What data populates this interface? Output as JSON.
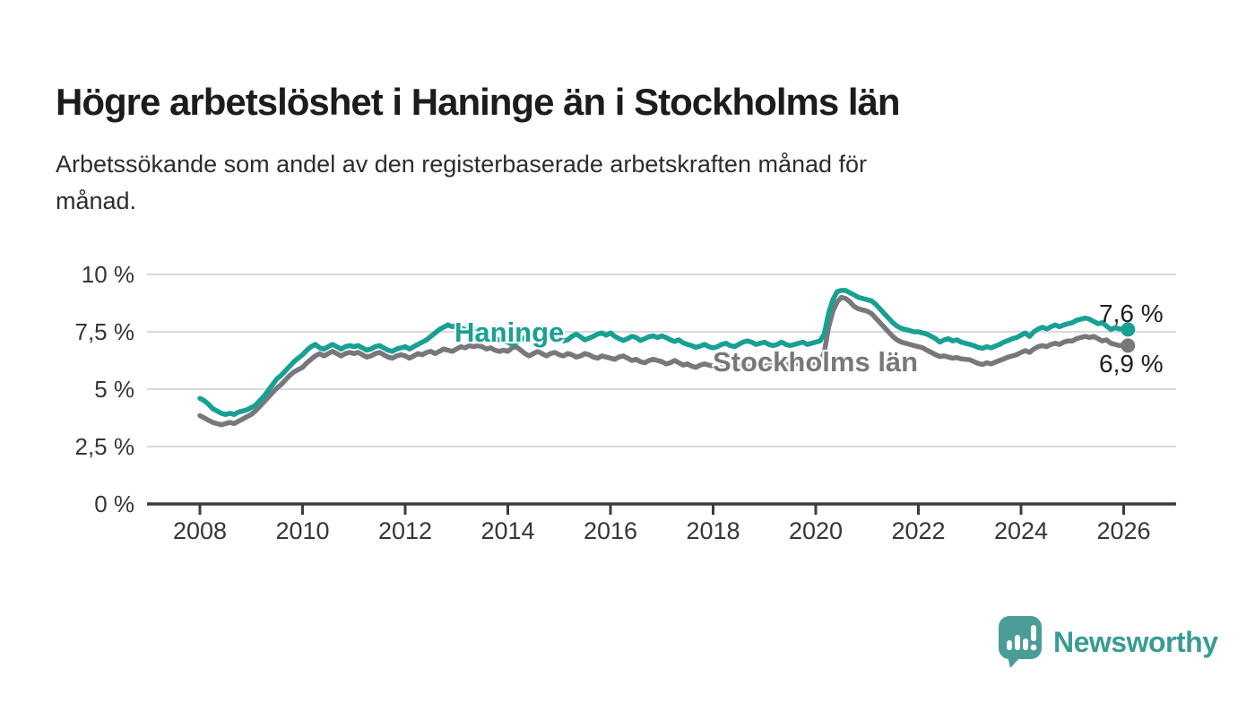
{
  "header": {
    "title": "Högre arbetslöshet i Haninge än i Stockholms län",
    "subtitle_line1": "Arbetssökande som andel av den registerbaserade arbetskraften månad för",
    "subtitle_line2": "månad."
  },
  "chart_data": {
    "type": "line",
    "unit": "percent of registered labour force",
    "x_start": "2008-01",
    "x_end": "2026-02",
    "x_interval": "monthly",
    "x_tick_labels": [
      "2008",
      "2010",
      "2012",
      "2014",
      "2016",
      "2018",
      "2020",
      "2022",
      "2024",
      "2026"
    ],
    "y_tick_values": [
      0,
      2.5,
      5,
      7.5,
      10
    ],
    "y_tick_labels": [
      "0 %",
      "2,5 %",
      "5 %",
      "7,5 %",
      "10 %"
    ],
    "ylim": [
      0,
      10
    ],
    "grid": "horizontal",
    "axis_color": "#3C3C3C",
    "grid_color": "#D9D9D9",
    "series": [
      {
        "name": "Haninge",
        "color": "#18A093",
        "end_label": "7,6 %",
        "end_value": 7.6,
        "values": [
          4.6,
          4.5,
          4.35,
          4.15,
          4.05,
          3.95,
          3.9,
          3.95,
          3.9,
          4.0,
          4.05,
          4.1,
          4.2,
          4.3,
          4.5,
          4.7,
          4.95,
          5.2,
          5.45,
          5.6,
          5.8,
          6.0,
          6.2,
          6.35,
          6.5,
          6.7,
          6.85,
          6.95,
          6.8,
          6.75,
          6.85,
          6.95,
          6.85,
          6.75,
          6.85,
          6.9,
          6.85,
          6.9,
          6.8,
          6.7,
          6.75,
          6.85,
          6.9,
          6.8,
          6.7,
          6.65,
          6.75,
          6.8,
          6.85,
          6.75,
          6.85,
          6.95,
          7.05,
          7.15,
          7.3,
          7.45,
          7.6,
          7.7,
          7.8,
          7.72,
          7.78,
          7.68,
          7.6,
          7.55,
          7.62,
          7.5,
          7.42,
          7.35,
          7.28,
          7.2,
          7.15,
          7.1,
          7.05,
          6.95,
          7.05,
          7.15,
          7.25,
          7.3,
          7.2,
          7.1,
          7.05,
          7.15,
          7.25,
          7.3,
          7.2,
          7.1,
          7.15,
          7.3,
          7.4,
          7.28,
          7.15,
          7.22,
          7.3,
          7.4,
          7.45,
          7.35,
          7.45,
          7.3,
          7.2,
          7.12,
          7.2,
          7.3,
          7.25,
          7.12,
          7.2,
          7.28,
          7.32,
          7.25,
          7.32,
          7.25,
          7.15,
          7.08,
          7.15,
          7.02,
          6.95,
          6.9,
          6.82,
          6.88,
          6.95,
          6.85,
          6.8,
          6.85,
          6.95,
          7.0,
          6.9,
          6.85,
          6.95,
          7.05,
          7.1,
          7.05,
          6.95,
          7.0,
          7.05,
          6.95,
          6.9,
          6.95,
          7.05,
          6.95,
          6.9,
          6.95,
          7.0,
          7.05,
          6.95,
          7.0,
          7.05,
          7.1,
          7.4,
          8.3,
          8.9,
          9.25,
          9.3,
          9.3,
          9.2,
          9.1,
          9.0,
          8.95,
          8.9,
          8.85,
          8.7,
          8.5,
          8.3,
          8.1,
          7.9,
          7.75,
          7.65,
          7.6,
          7.55,
          7.5,
          7.5,
          7.45,
          7.4,
          7.3,
          7.2,
          7.05,
          7.15,
          7.2,
          7.1,
          7.15,
          7.05,
          7.0,
          6.95,
          6.9,
          6.82,
          6.78,
          6.85,
          6.8,
          6.88,
          6.95,
          7.05,
          7.12,
          7.2,
          7.25,
          7.35,
          7.45,
          7.3,
          7.5,
          7.62,
          7.7,
          7.62,
          7.72,
          7.8,
          7.72,
          7.8,
          7.85,
          7.9,
          8.0,
          8.05,
          8.1,
          8.05,
          7.95,
          7.85,
          7.9,
          7.75,
          7.6,
          7.68,
          7.62,
          7.62,
          7.6
        ]
      },
      {
        "name": "Stockholms län",
        "color": "#78787C",
        "end_label": "6,9 %",
        "end_value": 6.9,
        "values": [
          3.85,
          3.75,
          3.65,
          3.55,
          3.5,
          3.45,
          3.5,
          3.55,
          3.5,
          3.6,
          3.7,
          3.8,
          3.9,
          4.05,
          4.25,
          4.45,
          4.65,
          4.85,
          5.05,
          5.2,
          5.4,
          5.6,
          5.75,
          5.85,
          5.95,
          6.15,
          6.3,
          6.45,
          6.55,
          6.45,
          6.55,
          6.65,
          6.55,
          6.45,
          6.55,
          6.6,
          6.55,
          6.6,
          6.5,
          6.4,
          6.45,
          6.55,
          6.6,
          6.5,
          6.4,
          6.35,
          6.45,
          6.5,
          6.45,
          6.35,
          6.45,
          6.55,
          6.5,
          6.6,
          6.65,
          6.55,
          6.65,
          6.75,
          6.7,
          6.65,
          6.75,
          6.85,
          6.8,
          6.9,
          6.85,
          6.9,
          6.85,
          6.75,
          6.8,
          6.7,
          6.65,
          6.7,
          6.65,
          6.8,
          6.85,
          6.7,
          6.55,
          6.45,
          6.55,
          6.65,
          6.55,
          6.45,
          6.55,
          6.6,
          6.5,
          6.45,
          6.55,
          6.5,
          6.4,
          6.45,
          6.55,
          6.5,
          6.4,
          6.35,
          6.45,
          6.4,
          6.35,
          6.3,
          6.4,
          6.45,
          6.35,
          6.25,
          6.3,
          6.2,
          6.15,
          6.25,
          6.3,
          6.25,
          6.2,
          6.1,
          6.15,
          6.25,
          6.15,
          6.05,
          6.1,
          6.0,
          5.95,
          6.05,
          6.1,
          6.05,
          6.0,
          5.95,
          6.0,
          6.05,
          5.95,
          5.9,
          5.95,
          6.05,
          6.0,
          5.95,
          6.0,
          6.05,
          6.0,
          6.05,
          6.1,
          6.05,
          6.0,
          6.05,
          6.1,
          6.15,
          6.1,
          6.05,
          6.1,
          6.15,
          6.15,
          6.2,
          6.6,
          7.7,
          8.4,
          8.8,
          9.0,
          8.95,
          8.8,
          8.6,
          8.5,
          8.45,
          8.4,
          8.3,
          8.1,
          7.9,
          7.7,
          7.5,
          7.3,
          7.15,
          7.05,
          7.0,
          6.95,
          6.9,
          6.85,
          6.8,
          6.7,
          6.6,
          6.5,
          6.42,
          6.45,
          6.4,
          6.35,
          6.38,
          6.32,
          6.3,
          6.28,
          6.2,
          6.12,
          6.08,
          6.15,
          6.1,
          6.18,
          6.25,
          6.32,
          6.4,
          6.45,
          6.5,
          6.6,
          6.68,
          6.6,
          6.75,
          6.85,
          6.9,
          6.85,
          6.95,
          7.0,
          6.95,
          7.05,
          7.1,
          7.1,
          7.2,
          7.25,
          7.3,
          7.25,
          7.3,
          7.2,
          7.1,
          7.15,
          7.0,
          6.95,
          6.9,
          6.92,
          6.9
        ]
      }
    ]
  },
  "footer": {
    "brand": "Newsworthy",
    "brand_color": "#3A9B96",
    "logo_color": "#4A9C97",
    "logo_icon": "bar-chart-speech-bubble-icon"
  }
}
